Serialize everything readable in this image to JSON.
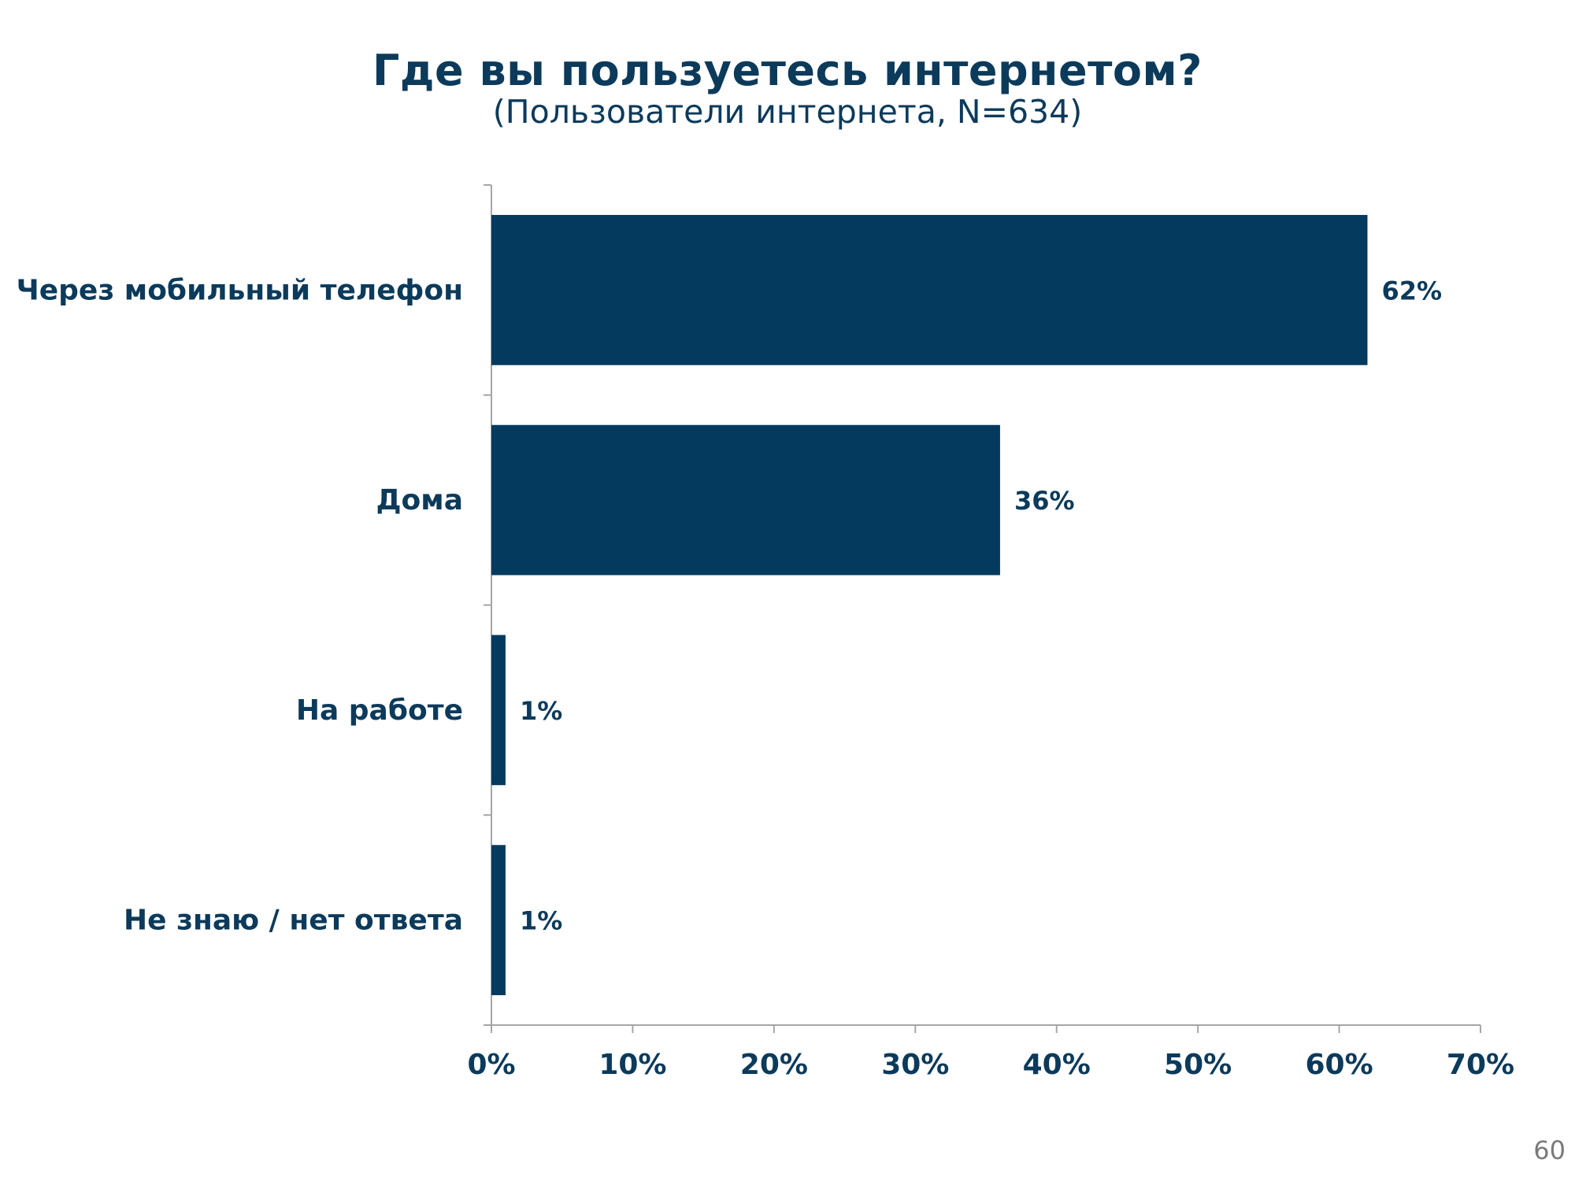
{
  "chart_data": {
    "type": "bar",
    "orientation": "horizontal",
    "title": "Где вы пользуетесь интернетом?",
    "subtitle": "(Пользователи интернета, N=634)",
    "categories": [
      "Через мобильный телефон",
      "Дома",
      "На работе",
      "Не знаю / нет ответа"
    ],
    "values": [
      62,
      36,
      1,
      1
    ],
    "value_labels": [
      "62%",
      "36%",
      "1%",
      "1%"
    ],
    "xlim": [
      0,
      70
    ],
    "x_ticks": [
      0,
      10,
      20,
      30,
      40,
      50,
      60,
      70
    ],
    "x_tick_labels": [
      "0%",
      "10%",
      "20%",
      "30%",
      "40%",
      "50%",
      "60%",
      "70%"
    ],
    "grid": false,
    "legend": "none",
    "bar_color": "#043a5e"
  },
  "page_number": "60",
  "colors": {
    "text": "#0c3a5b",
    "axis": "#a6a6a6",
    "page_number": "#7a7a7a"
  }
}
